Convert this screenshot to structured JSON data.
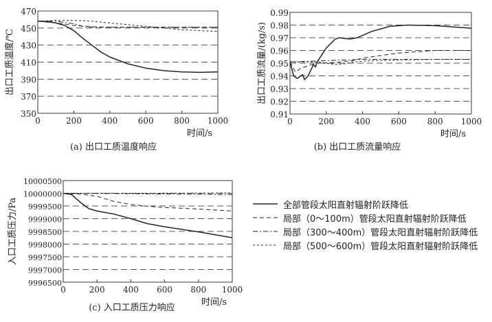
{
  "chart_data": [
    {
      "type": "line",
      "title": "(a) 出口工质温度响应",
      "xlabel": "时间/s",
      "ylabel": "出口工质温度/℃",
      "xlim": [
        0,
        1000
      ],
      "ylim": [
        350,
        470
      ],
      "xticks": [
        0,
        200,
        400,
        600,
        800,
        1000
      ],
      "yticks": [
        350,
        370,
        390,
        410,
        430,
        450,
        470
      ],
      "ytick_labels": [
        "350",
        "370",
        "390",
        "410",
        "430",
        "450",
        "470"
      ],
      "grid": "horizontal dashed",
      "series": [
        {
          "name": "全部管段太阳直射辐射阶跃降低",
          "style": "solid",
          "x": [
            0,
            50,
            100,
            150,
            200,
            250,
            300,
            350,
            400,
            500,
            600,
            700,
            800,
            900,
            1000
          ],
          "y": [
            458,
            457.5,
            456,
            453,
            447,
            438,
            430,
            422,
            416,
            408,
            403,
            400,
            398.5,
            398,
            398.5
          ]
        },
        {
          "name": "局部（0～100m）管段太阳直射辐射阶跃降低",
          "style": "dashed",
          "x": [
            0,
            100,
            200,
            300,
            400,
            500,
            600,
            700,
            800,
            900,
            1000
          ],
          "y": [
            458,
            456,
            453,
            451.5,
            451,
            451,
            451,
            451,
            451,
            451,
            451
          ]
        },
        {
          "name": "局部（300～400m）管段太阳直射辐射阶跃降低",
          "style": "dashdot",
          "x": [
            0,
            100,
            200,
            250,
            300,
            400,
            500,
            600,
            700,
            800,
            900,
            1000
          ],
          "y": [
            458,
            458,
            455,
            452,
            451,
            451,
            451,
            451,
            451,
            451,
            451,
            451
          ]
        },
        {
          "name": "局部（500～600m）管段太阳直射辐射阶跃降低",
          "style": "dotted",
          "x": [
            0,
            100,
            200,
            300,
            400,
            500,
            600,
            700,
            800,
            900,
            1000
          ],
          "y": [
            458,
            459,
            459,
            458,
            456,
            454,
            452,
            450,
            448,
            447,
            446
          ]
        }
      ]
    },
    {
      "type": "line",
      "title": "(b) 出口工质流量响应",
      "xlabel": "时间/s",
      "ylabel": "出口工质流量/(kg/s)",
      "xlim": [
        0,
        1000
      ],
      "ylim": [
        0.91,
        0.99
      ],
      "xticks": [
        0,
        200,
        400,
        600,
        800,
        1000
      ],
      "yticks": [
        0.91,
        0.92,
        0.93,
        0.94,
        0.95,
        0.96,
        0.97,
        0.98,
        0.99
      ],
      "ytick_labels": [
        "0.91",
        "0.92",
        "0.93",
        "0.94",
        "0.95",
        "0.96",
        "0.97",
        "0.98",
        "0.99"
      ],
      "grid": "horizontal dashed",
      "series": [
        {
          "name": "全部管段太阳直射辐射阶跃降低",
          "style": "solid",
          "x": [
            0,
            20,
            40,
            60,
            70,
            80,
            100,
            120,
            130,
            140,
            150,
            200,
            250,
            270,
            330,
            370,
            450,
            550,
            650,
            800,
            1000
          ],
          "y": [
            0.951,
            0.94,
            0.938,
            0.94,
            0.941,
            0.937,
            0.94,
            0.946,
            0.949,
            0.947,
            0.951,
            0.962,
            0.969,
            0.97,
            0.969,
            0.97,
            0.975,
            0.979,
            0.98,
            0.9795,
            0.9775
          ]
        },
        {
          "name": "局部（0～100m）管段太阳直射辐射阶跃降低",
          "style": "dashed",
          "x": [
            0,
            30,
            60,
            100,
            150,
            250,
            350,
            400,
            500,
            600,
            700,
            800,
            1000
          ],
          "y": [
            0.951,
            0.943,
            0.946,
            0.948,
            0.95,
            0.9505,
            0.952,
            0.954,
            0.956,
            0.958,
            0.959,
            0.96,
            0.96
          ]
        },
        {
          "name": "局部（300～400m）管段太阳直射辐射阶跃降低",
          "style": "dashdot",
          "x": [
            0,
            100,
            200,
            300,
            400,
            600,
            800,
            1000
          ],
          "y": [
            0.951,
            0.9515,
            0.952,
            0.9525,
            0.953,
            0.953,
            0.953,
            0.953
          ]
        },
        {
          "name": "局部（500～600m）管段太阳直射辐射阶跃降低",
          "style": "dotted",
          "x": [
            0,
            150,
            250,
            300,
            350,
            450,
            600,
            800,
            1000
          ],
          "y": [
            0.951,
            0.951,
            0.949,
            0.9495,
            0.951,
            0.952,
            0.9525,
            0.953,
            0.953
          ]
        }
      ]
    },
    {
      "type": "line",
      "title": "(c) 入口工质压力响应",
      "xlabel": "时间/s",
      "ylabel": "入口工质压力/Pa",
      "xlim": [
        0,
        1000
      ],
      "ylim": [
        9996500,
        10000500
      ],
      "xticks": [
        0,
        200,
        400,
        600,
        800,
        1000
      ],
      "yticks": [
        9996500,
        9997000,
        9997500,
        9998000,
        9998500,
        9999000,
        9999500,
        10000000,
        10000500
      ],
      "ytick_labels": [
        "9996500",
        "9997000",
        "9997500",
        "9998000",
        "9998500",
        "9999000",
        "9999500",
        "10000000",
        "10000500"
      ],
      "grid": "horizontal dashed",
      "series": [
        {
          "name": "全部管段太阳直射辐射阶跃降低",
          "style": "solid",
          "x": [
            0,
            50,
            100,
            150,
            200,
            300,
            400,
            500,
            600,
            800,
            1000
          ],
          "y": [
            10000000,
            9999950,
            9999650,
            9999400,
            9999300,
            9999180,
            9999000,
            9998800,
            9998680,
            9998480,
            9998250
          ]
        },
        {
          "name": "局部（0～100m）管段太阳直射辐射阶跃降低",
          "style": "dashed",
          "x": [
            0,
            100,
            200,
            300,
            400,
            500,
            600,
            800,
            1000
          ],
          "y": [
            10000000,
            9999970,
            9999880,
            9999680,
            9999560,
            9999490,
            9999440,
            9999380,
            9999300
          ]
        },
        {
          "name": "局部（300～400m）管段太阳直射辐射阶跃降低",
          "style": "dashdot",
          "x": [
            0,
            300,
            600,
            1000
          ],
          "y": [
            10000000,
            9999990,
            9999970,
            9999950
          ]
        },
        {
          "name": "局部（500～600m）管段太阳直射辐射阶跃降低",
          "style": "dotted",
          "x": [
            0,
            500,
            1000
          ],
          "y": [
            10000000,
            10000000,
            10000010
          ]
        }
      ]
    }
  ],
  "legend": {
    "placement": "right of chart c",
    "items": [
      {
        "label": "全部管段太阳直射辐射阶跃降低",
        "style": "solid"
      },
      {
        "label": "局部（0～100m）管段太阳直射辐射阶跃降低",
        "style": "dashed"
      },
      {
        "label": "局部（300～400m）管段太阳直射辐射阶跃降低",
        "style": "dashdot"
      },
      {
        "label": "局部（500～600m）管段太阳直射辐射阶跃降低",
        "style": "dotted"
      }
    ]
  }
}
